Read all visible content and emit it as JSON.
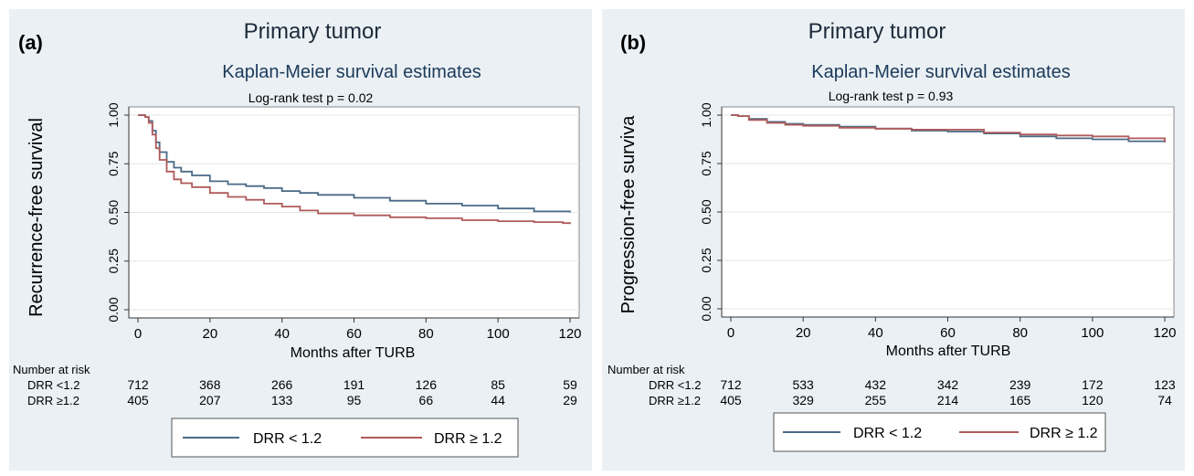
{
  "chart_data": [
    {
      "type": "line",
      "panel_label": "(a)",
      "heading": "Primary tumor",
      "title": "Kaplan-Meier survival estimates",
      "subtitle": "Log-rank test p = 0.02",
      "xlabel": "Months after TURB",
      "ylabel": "Recurrence-free survival",
      "xlim": [
        0,
        120
      ],
      "ylim": [
        0,
        1
      ],
      "x_ticks": [
        "0",
        "20",
        "40",
        "60",
        "80",
        "100",
        "120"
      ],
      "y_ticks": [
        "0.00",
        "0.25",
        "0.50",
        "0.75",
        "1.00"
      ],
      "grid": true,
      "legend_position": "bottom",
      "series": [
        {
          "name": "DRR < 1.2",
          "color": "#4a6a86",
          "x": [
            0,
            1,
            2,
            3,
            4,
            5,
            6,
            8,
            10,
            12,
            15,
            20,
            25,
            30,
            35,
            40,
            45,
            50,
            60,
            70,
            80,
            90,
            100,
            110,
            120
          ],
          "y": [
            1.0,
            1.0,
            0.99,
            0.97,
            0.92,
            0.86,
            0.81,
            0.76,
            0.73,
            0.71,
            0.69,
            0.66,
            0.645,
            0.635,
            0.625,
            0.61,
            0.6,
            0.59,
            0.575,
            0.56,
            0.545,
            0.535,
            0.52,
            0.505,
            0.5
          ]
        },
        {
          "name": "DRR ≥ 1.2",
          "color": "#b05a5a",
          "x": [
            0,
            1,
            2,
            3,
            4,
            5,
            6,
            8,
            10,
            12,
            15,
            20,
            25,
            30,
            35,
            40,
            45,
            50,
            60,
            70,
            80,
            90,
            100,
            110,
            118,
            120
          ],
          "y": [
            1.0,
            1.0,
            0.99,
            0.96,
            0.9,
            0.83,
            0.77,
            0.71,
            0.67,
            0.65,
            0.63,
            0.6,
            0.58,
            0.565,
            0.545,
            0.53,
            0.51,
            0.495,
            0.485,
            0.475,
            0.47,
            0.46,
            0.455,
            0.45,
            0.445,
            0.44
          ]
        }
      ],
      "risk_table": {
        "heading": "Number at risk",
        "rows": [
          {
            "label": "DRR <1.2",
            "values": [
              "712",
              "368",
              "266",
              "191",
              "126",
              "85",
              "59"
            ]
          },
          {
            "label": "DRR ≥1.2",
            "values": [
              "405",
              "207",
              "133",
              "95",
              "66",
              "44",
              "29"
            ]
          }
        ]
      }
    },
    {
      "type": "line",
      "panel_label": "(b)",
      "heading": "Primary tumor",
      "title": "Kaplan-Meier survival estimates",
      "subtitle": "Log-rank test p = 0.93",
      "xlabel": "Months after TURB",
      "ylabel": "Progression-free surviva",
      "xlim": [
        0,
        120
      ],
      "ylim": [
        0,
        1
      ],
      "x_ticks": [
        "0",
        "20",
        "40",
        "60",
        "80",
        "100",
        "120"
      ],
      "y_ticks": [
        "0.00",
        "0.25",
        "0.50",
        "0.75",
        "1.00"
      ],
      "grid": true,
      "legend_position": "bottom",
      "series": [
        {
          "name": "DRR < 1.2",
          "color": "#4a6a86",
          "x": [
            0,
            2,
            5,
            10,
            15,
            20,
            30,
            40,
            50,
            60,
            70,
            80,
            90,
            100,
            110,
            120
          ],
          "y": [
            1.0,
            0.995,
            0.98,
            0.965,
            0.955,
            0.95,
            0.94,
            0.93,
            0.92,
            0.915,
            0.905,
            0.89,
            0.88,
            0.875,
            0.865,
            0.86
          ]
        },
        {
          "name": "DRR ≥ 1.2",
          "color": "#b05a5a",
          "x": [
            0,
            2,
            5,
            10,
            15,
            20,
            30,
            40,
            50,
            60,
            70,
            80,
            90,
            100,
            110,
            120
          ],
          "y": [
            1.0,
            0.995,
            0.975,
            0.96,
            0.95,
            0.945,
            0.935,
            0.93,
            0.925,
            0.925,
            0.91,
            0.9,
            0.895,
            0.89,
            0.88,
            0.86
          ]
        }
      ],
      "risk_table": {
        "heading": "Number at risk",
        "rows": [
          {
            "label": "DRR <1.2",
            "values": [
              "712",
              "533",
              "432",
              "342",
              "239",
              "172",
              "123"
            ]
          },
          {
            "label": "DRR ≥1.2",
            "values": [
              "405",
              "329",
              "255",
              "214",
              "165",
              "120",
              "74"
            ]
          }
        ]
      }
    }
  ]
}
